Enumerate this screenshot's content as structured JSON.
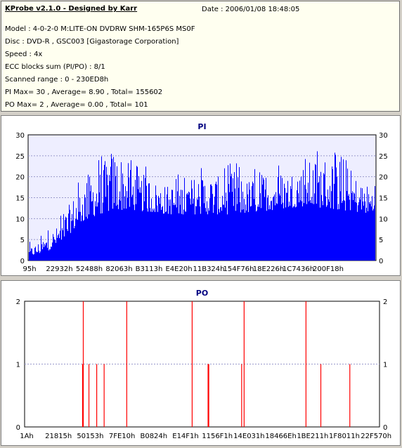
{
  "info": {
    "title": "KProbe v2.1.0 - Designed by Karr",
    "date": "Date : 2006/01/08 18:48:05",
    "lines": [
      "Model : 4-0-2-0 M:LITE-ON DVDRW SHM-165P6S MS0F",
      "Disc : DVD-R , GSC003 [Gigastorage Corporation]",
      "Speed : 4x",
      "ECC blocks sum (PI/PO) : 8/1",
      "Scanned range : 0 - 230ED8h",
      "PI Max= 30 , Average= 8.90 , Total= 155602",
      "PO Max= 2 , Average= 0.00 , Total= 101"
    ]
  },
  "colors": {
    "pi_fill": "#0000ff",
    "pi_bg": "#eeeeff",
    "po_line": "#ff0000",
    "title": "#000080"
  },
  "chart_data": [
    {
      "type": "bar",
      "title": "PI",
      "ylim": [
        0,
        30
      ],
      "yticks": [
        0,
        5,
        10,
        15,
        20,
        25,
        30
      ],
      "xticklabels": [
        "95h",
        "22932h",
        "52488h",
        "82063h",
        "B3113h",
        "E4E20h",
        "11B324h",
        "154F76h",
        "18E226h",
        "1C7436h",
        "200F18h"
      ],
      "envelope": [
        [
          0,
          3
        ],
        [
          2,
          4
        ],
        [
          5,
          6
        ],
        [
          8,
          8
        ],
        [
          10,
          11
        ],
        [
          12,
          14
        ],
        [
          14,
          17
        ],
        [
          16,
          19
        ],
        [
          18,
          21
        ],
        [
          20,
          22
        ],
        [
          22,
          24
        ],
        [
          24,
          27
        ],
        [
          26,
          26
        ],
        [
          28,
          24
        ],
        [
          30,
          22
        ],
        [
          32,
          20
        ],
        [
          34,
          21
        ],
        [
          36,
          19
        ],
        [
          40,
          18
        ],
        [
          45,
          19
        ],
        [
          50,
          21
        ],
        [
          55,
          20
        ],
        [
          60,
          22
        ],
        [
          62,
          19
        ],
        [
          65,
          20
        ],
        [
          70,
          22
        ],
        [
          75,
          21
        ],
        [
          78,
          23
        ],
        [
          82,
          24
        ],
        [
          85,
          25
        ],
        [
          87,
          25
        ],
        [
          90,
          23
        ],
        [
          93,
          21
        ],
        [
          96,
          19
        ],
        [
          100,
          17
        ]
      ],
      "floor": [
        [
          0,
          1
        ],
        [
          5,
          2
        ],
        [
          10,
          5
        ],
        [
          15,
          9
        ],
        [
          20,
          11
        ],
        [
          25,
          12
        ],
        [
          30,
          12
        ],
        [
          40,
          11
        ],
        [
          50,
          11
        ],
        [
          60,
          11
        ],
        [
          70,
          12
        ],
        [
          80,
          13
        ],
        [
          90,
          12
        ],
        [
          100,
          11
        ]
      ]
    },
    {
      "type": "bar",
      "title": "PO",
      "ylim": [
        0,
        2
      ],
      "yticks": [
        0,
        1,
        2
      ],
      "xticklabels": [
        "1Ah",
        "21815h",
        "50153h",
        "7FE10h",
        "B0824h",
        "E14F1h",
        "1156F1h",
        "14E031h",
        "18466Eh",
        "1BE211h",
        "1F8011h",
        "22F570h"
      ],
      "spikes": [
        [
          16.2,
          1
        ],
        [
          16.4,
          2
        ],
        [
          18.0,
          1
        ],
        [
          20.2,
          1
        ],
        [
          22.3,
          1
        ],
        [
          28.7,
          2
        ],
        [
          47.2,
          2
        ],
        [
          51.7,
          1
        ],
        [
          51.9,
          1
        ],
        [
          61.2,
          1
        ],
        [
          61.9,
          2
        ],
        [
          79.4,
          2
        ],
        [
          83.6,
          1
        ],
        [
          91.8,
          1
        ]
      ]
    }
  ]
}
